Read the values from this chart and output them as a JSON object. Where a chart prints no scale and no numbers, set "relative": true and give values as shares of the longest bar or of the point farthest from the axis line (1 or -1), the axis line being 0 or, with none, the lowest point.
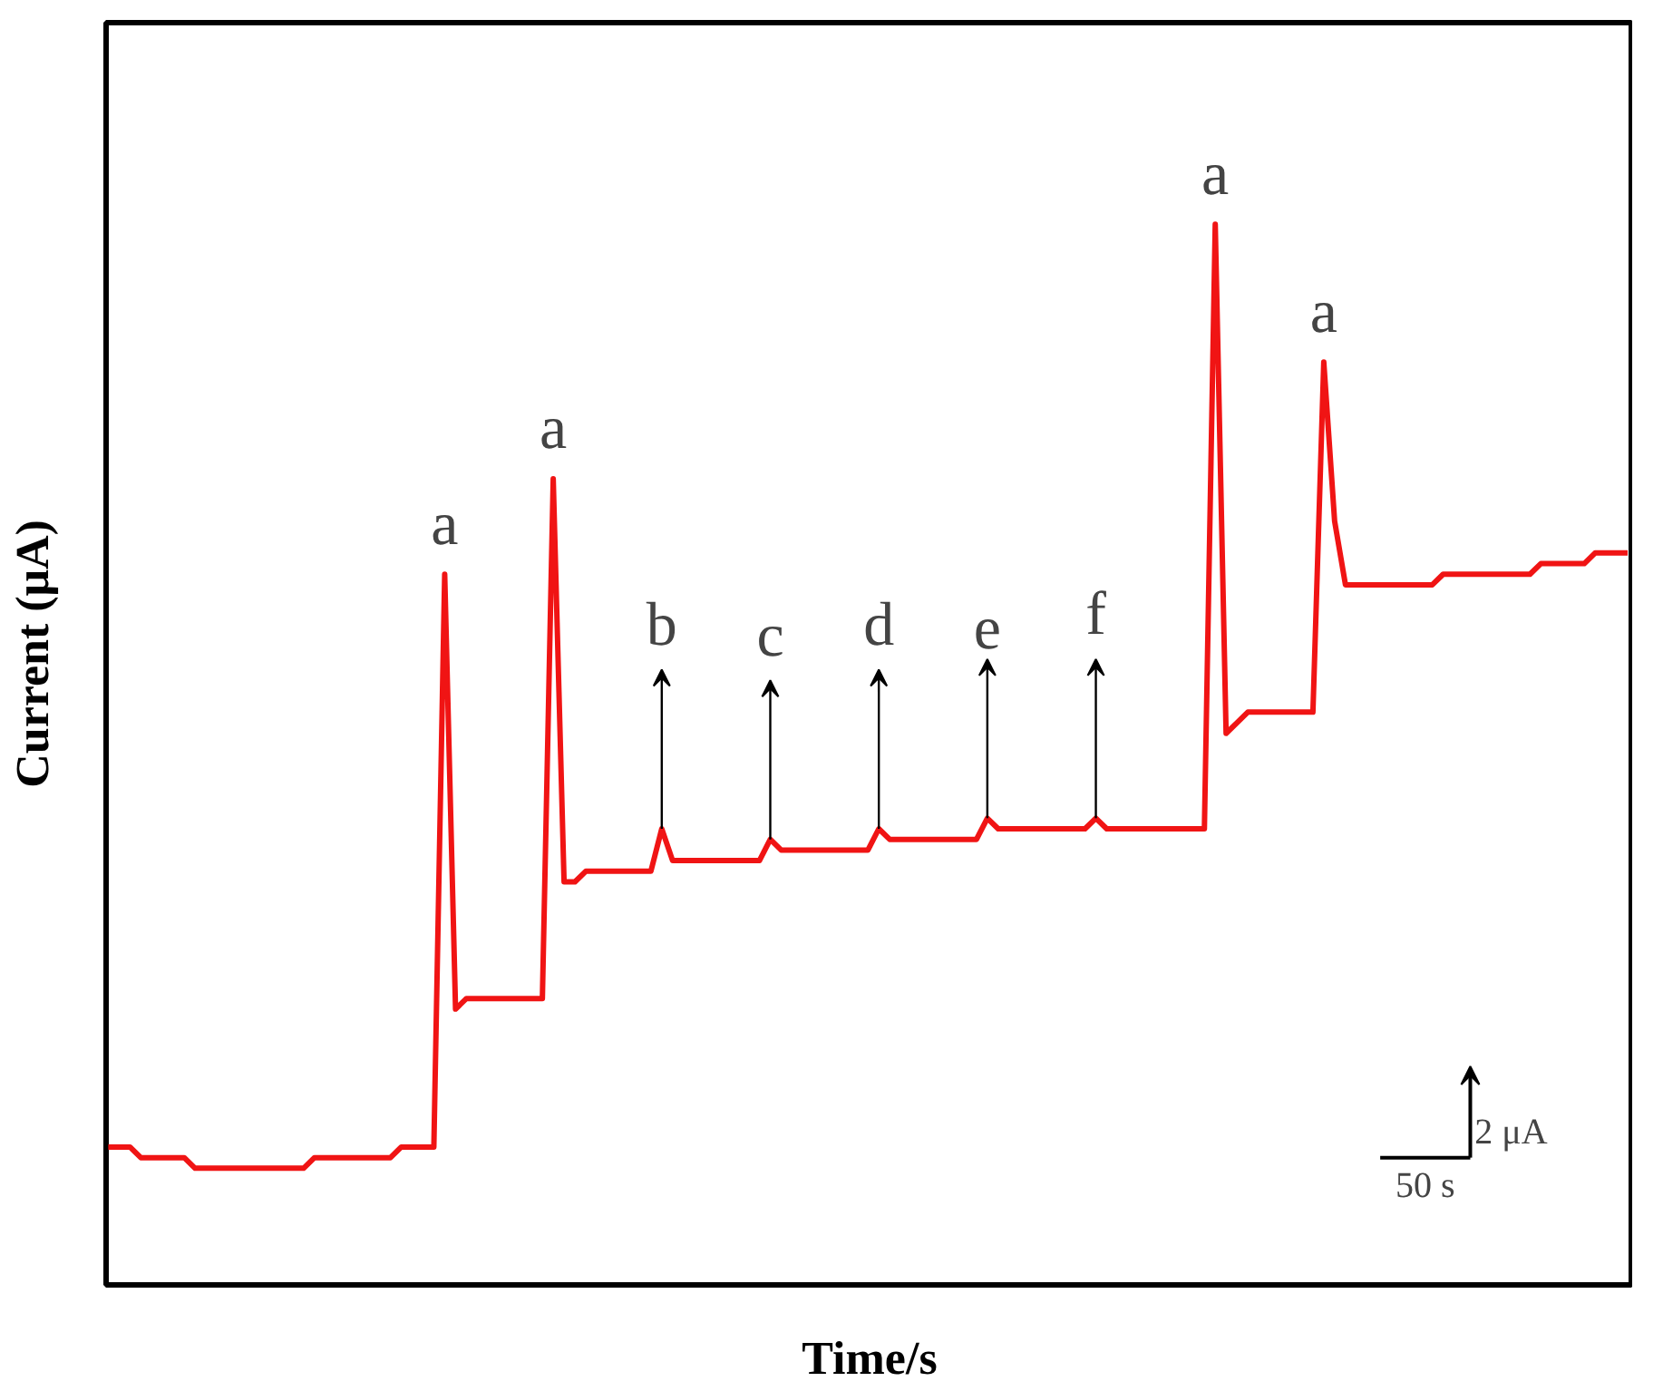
{
  "chart_data": {
    "type": "line",
    "relative": true,
    "xlabel": "Time/s",
    "ylabel": "Current (μA)",
    "tick_labels": false,
    "grid": false,
    "categories": [
      null,
      null,
      null,
      null,
      null,
      null,
      null,
      null,
      null,
      null,
      null,
      null,
      null,
      null,
      null,
      null,
      null,
      null,
      null,
      null,
      null,
      null,
      null,
      null,
      null,
      null,
      null,
      null,
      null,
      null,
      null,
      null,
      null,
      null,
      null,
      null,
      null,
      null,
      null,
      null,
      null,
      null,
      null,
      null,
      null,
      null,
      null,
      null,
      null,
      null,
      null,
      null,
      null,
      null,
      null,
      null,
      null,
      null,
      null,
      null,
      null,
      null,
      null,
      null,
      null,
      null,
      null,
      null,
      null,
      null,
      null,
      null,
      null,
      null,
      null,
      null,
      null,
      null,
      null,
      null,
      null,
      null,
      null,
      null,
      null,
      null,
      null,
      null,
      null,
      null,
      null,
      null,
      null,
      null,
      null,
      null,
      null,
      null,
      null,
      null,
      null,
      null,
      null,
      null,
      null,
      null,
      null,
      null,
      null,
      null,
      null,
      null,
      null,
      null,
      null,
      null,
      null,
      null,
      null,
      null,
      null,
      null,
      null,
      null,
      null,
      null,
      null,
      null,
      null,
      null,
      null,
      null,
      null,
      null,
      null,
      null,
      null,
      null,
      null,
      null,
      null
    ],
    "series": [
      {
        "color": "#f01414",
        "values": [
          0.13,
          0.13,
          0.13,
          0.12,
          0.12,
          0.12,
          0.12,
          0.12,
          0.11,
          0.11,
          0.11,
          0.11,
          0.11,
          0.11,
          0.11,
          0.11,
          0.11,
          0.11,
          0.11,
          0.12,
          0.12,
          0.12,
          0.12,
          0.12,
          0.12,
          0.12,
          0.12,
          0.13,
          0.13,
          0.13,
          0.13,
          0.67,
          0.26,
          0.27,
          0.27,
          0.27,
          0.27,
          0.27,
          0.27,
          0.27,
          0.27,
          0.76,
          0.38,
          0.38,
          0.39,
          0.39,
          0.39,
          0.39,
          0.39,
          0.39,
          0.39,
          0.43,
          0.4,
          0.4,
          0.4,
          0.4,
          0.4,
          0.4,
          0.4,
          0.4,
          0.4,
          0.42,
          0.41,
          0.41,
          0.41,
          0.41,
          0.41,
          0.41,
          0.41,
          0.41,
          0.41,
          0.43,
          0.42,
          0.42,
          0.42,
          0.42,
          0.42,
          0.42,
          0.42,
          0.42,
          0.42,
          0.44,
          0.43,
          0.43,
          0.43,
          0.43,
          0.43,
          0.43,
          0.43,
          0.43,
          0.43,
          0.44,
          0.43,
          0.43,
          0.43,
          0.43,
          0.43,
          0.43,
          0.43,
          0.43,
          0.43,
          0.43,
          1.0,
          0.52,
          0.53,
          0.54,
          0.54,
          0.54,
          0.54,
          0.54,
          0.54,
          0.54,
          0.87,
          0.72,
          0.66,
          0.66,
          0.66,
          0.66,
          0.66,
          0.66,
          0.66,
          0.66,
          0.66,
          0.67,
          0.67,
          0.67,
          0.67,
          0.67,
          0.67,
          0.67,
          0.67,
          0.67,
          0.68,
          0.68,
          0.68,
          0.68,
          0.68,
          0.69,
          0.69,
          0.69,
          0.69
        ]
      }
    ],
    "annotations": [
      "a",
      "a",
      "b",
      "c",
      "d",
      "e",
      "f",
      "a",
      "a",
      "2 μA",
      "50 s"
    ]
  }
}
